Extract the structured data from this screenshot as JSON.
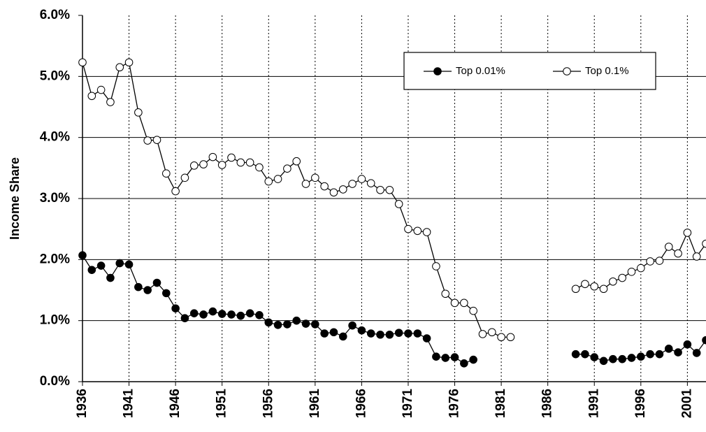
{
  "chart_data": {
    "type": "line",
    "y_label": "Income Share",
    "x": [
      1936,
      1937,
      1938,
      1939,
      1940,
      1941,
      1942,
      1943,
      1944,
      1945,
      1946,
      1947,
      1948,
      1949,
      1950,
      1951,
      1952,
      1953,
      1954,
      1955,
      1956,
      1957,
      1958,
      1959,
      1960,
      1961,
      1962,
      1963,
      1964,
      1965,
      1966,
      1967,
      1968,
      1969,
      1970,
      1971,
      1972,
      1973,
      1974,
      1975,
      1976,
      1977,
      1978,
      1979,
      1980,
      1981,
      1982,
      1983,
      1984,
      1985,
      1986,
      1987,
      1988,
      1989,
      1990,
      1991,
      1992,
      1993,
      1994,
      1995,
      1996,
      1997,
      1998,
      1999,
      2000,
      2001,
      2002,
      2003
    ],
    "series": [
      {
        "name": "Top 0.01%",
        "color": "#000000",
        "marker_fill": "#000000",
        "values": [
          2.07,
          1.83,
          1.9,
          1.7,
          1.94,
          1.92,
          1.55,
          1.5,
          1.62,
          1.45,
          1.2,
          1.04,
          1.12,
          1.1,
          1.15,
          1.11,
          1.1,
          1.08,
          1.12,
          1.09,
          0.97,
          0.93,
          0.94,
          1.0,
          0.95,
          0.94,
          0.79,
          0.81,
          0.74,
          0.92,
          0.84,
          0.79,
          0.77,
          0.77,
          0.8,
          0.79,
          0.79,
          0.71,
          0.41,
          0.39,
          0.4,
          0.3,
          0.36,
          null,
          null,
          null,
          null,
          null,
          null,
          null,
          null,
          null,
          null,
          0.45,
          0.45,
          0.4,
          0.34,
          0.37,
          0.37,
          0.39,
          0.41,
          0.45,
          0.45,
          0.54,
          0.48,
          0.61,
          0.47,
          0.68
        ]
      },
      {
        "name": "Top 0.1%",
        "color": "#000000",
        "marker_fill": "#ffffff",
        "values": [
          5.23,
          4.68,
          4.78,
          4.58,
          5.15,
          5.23,
          4.41,
          3.95,
          3.96,
          3.41,
          3.12,
          3.34,
          3.54,
          3.56,
          3.68,
          3.55,
          3.67,
          3.59,
          3.59,
          3.51,
          3.28,
          3.32,
          3.49,
          3.61,
          3.24,
          3.34,
          3.2,
          3.1,
          3.15,
          3.24,
          3.32,
          3.25,
          3.14,
          3.14,
          2.91,
          2.5,
          2.47,
          2.45,
          1.89,
          1.44,
          1.29,
          1.29,
          1.16,
          0.78,
          0.81,
          0.73,
          0.73,
          null,
          null,
          null,
          null,
          null,
          null,
          1.52,
          1.6,
          1.56,
          1.52,
          1.64,
          1.7,
          1.8,
          1.86,
          1.97,
          1.98,
          2.21,
          2.1,
          2.44,
          2.05,
          2.26
        ]
      }
    ],
    "xlim": [
      1936,
      2003
    ],
    "xticks": [
      1936,
      1941,
      1946,
      1951,
      1956,
      1961,
      1966,
      1971,
      1976,
      1981,
      1986,
      1991,
      1996,
      2001
    ],
    "ylim": [
      0,
      6
    ],
    "yticks": [
      {
        "value": 0,
        "label": "0.0%"
      },
      {
        "value": 1,
        "label": "1.0%"
      },
      {
        "value": 2,
        "label": "2.0%"
      },
      {
        "value": 3,
        "label": "3.0%"
      },
      {
        "value": 4,
        "label": "4.0%"
      },
      {
        "value": 5,
        "label": "5.0%"
      },
      {
        "value": 6,
        "label": "6.0%"
      }
    ],
    "grid": true,
    "legend": "upper right"
  }
}
